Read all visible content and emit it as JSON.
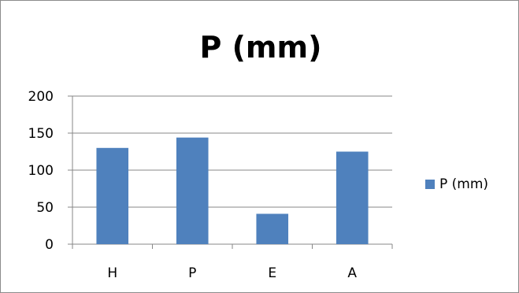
{
  "chart_data": {
    "type": "bar",
    "title": "P (mm)",
    "xlabel": "",
    "ylabel": "",
    "categories": [
      "H",
      "P",
      "E",
      "A"
    ],
    "series": [
      {
        "name": "P (mm)",
        "values": [
          130,
          144,
          41,
          125
        ],
        "color": "#4f81bd"
      }
    ],
    "ylim": [
      0,
      200
    ],
    "yticks": [
      0,
      50,
      100,
      150,
      200
    ],
    "grid": true,
    "legend": "right"
  }
}
